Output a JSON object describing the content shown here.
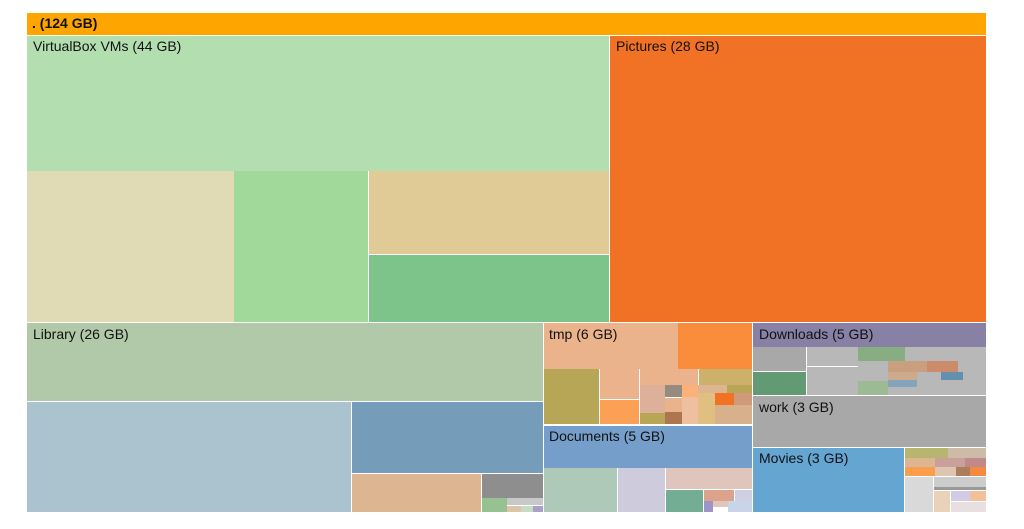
{
  "chart_data": {
    "type": "treemap",
    "unit": "GB",
    "root": {
      "label": ". (124 GB)",
      "name": ".",
      "size": 124,
      "color": "#ffa500"
    },
    "nodes": [
      {
        "label": "VirtualBox VMs (44 GB)",
        "name": "VirtualBox VMs",
        "size": 44,
        "color": "#b3dfb0"
      },
      {
        "label": "Pictures (28 GB)",
        "name": "Pictures",
        "size": 28,
        "color": "#f27225"
      },
      {
        "label": "Library (26 GB)",
        "name": "Library",
        "size": 26,
        "color": "#b1c9a9"
      },
      {
        "label": "tmp (6 GB)",
        "name": "tmp",
        "size": 6,
        "color": "#ebb38b"
      },
      {
        "label": "Documents (5 GB)",
        "name": "Documents",
        "size": 5,
        "color": "#759fca"
      },
      {
        "label": "Downloads (5 GB)",
        "name": "Downloads",
        "size": 5,
        "color": "#8880a5"
      },
      {
        "label": "work (3 GB)",
        "name": "work",
        "size": 3,
        "color": "#a8a8a8"
      },
      {
        "label": "Movies (3 GB)",
        "name": "Movies",
        "size": 3,
        "color": "#65a5d2"
      }
    ]
  }
}
